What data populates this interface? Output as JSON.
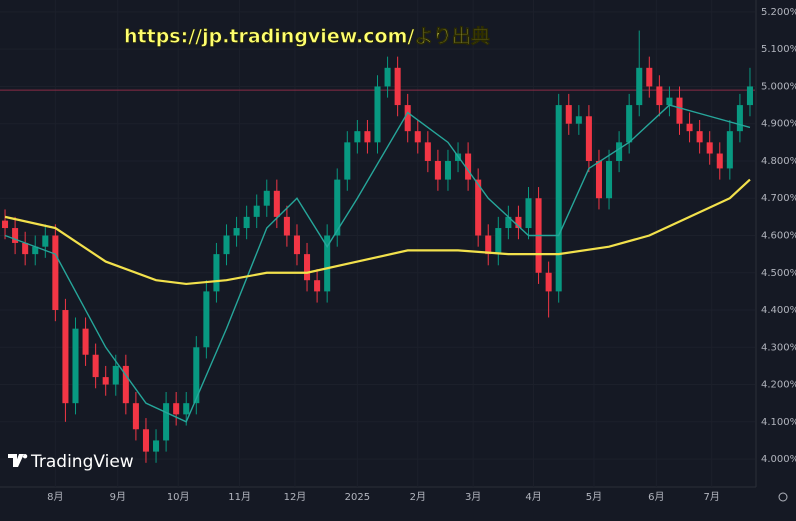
{
  "chart_data": {
    "type": "candlestick",
    "source_note": "https://jp.tradingview.com/より出典",
    "brand": "TradingView",
    "up_color": "#089981",
    "down_color": "#f23645",
    "open": [
      4.64,
      4.62,
      4.58,
      4.55,
      4.57,
      4.6,
      4.4,
      4.15,
      4.35,
      4.28,
      4.22,
      4.2,
      4.25,
      4.15,
      4.08,
      4.02,
      4.05,
      4.15,
      4.12,
      4.15,
      4.3,
      4.45,
      4.55,
      4.6,
      4.62,
      4.65,
      4.68,
      4.72,
      4.65,
      4.6,
      4.55,
      4.48,
      4.45,
      4.6,
      4.75,
      4.85,
      4.88,
      4.85,
      5.0,
      5.05,
      4.95,
      4.88,
      4.85,
      4.8,
      4.75,
      4.8,
      4.82,
      4.75,
      4.6,
      4.55,
      4.62,
      4.65,
      4.62,
      4.7,
      4.5,
      4.45,
      4.95,
      4.9,
      4.92,
      4.8,
      4.7,
      4.8,
      4.85,
      4.95,
      5.05,
      5.0,
      4.95,
      4.97,
      4.9,
      4.88,
      4.85,
      4.82,
      4.78,
      4.88,
      4.95
    ],
    "high": [
      4.67,
      4.65,
      4.61,
      4.6,
      4.63,
      4.63,
      4.43,
      4.38,
      4.38,
      4.31,
      4.25,
      4.28,
      4.28,
      4.18,
      4.11,
      4.08,
      4.18,
      4.18,
      4.18,
      4.33,
      4.48,
      4.58,
      4.63,
      4.65,
      4.68,
      4.71,
      4.75,
      4.75,
      4.68,
      4.63,
      4.58,
      4.51,
      4.63,
      4.78,
      4.88,
      4.91,
      4.91,
      5.03,
      5.08,
      5.08,
      4.98,
      4.91,
      4.88,
      4.83,
      4.83,
      4.85,
      4.85,
      4.78,
      4.63,
      4.65,
      4.68,
      4.68,
      4.73,
      4.73,
      4.53,
      4.98,
      4.98,
      4.95,
      4.95,
      4.83,
      4.83,
      4.88,
      4.98,
      5.15,
      5.08,
      5.03,
      5.0,
      5.0,
      4.93,
      4.91,
      4.88,
      4.85,
      4.91,
      4.98,
      5.05
    ],
    "low": [
      4.59,
      4.55,
      4.52,
      4.52,
      4.54,
      4.37,
      4.1,
      4.12,
      4.25,
      4.19,
      4.17,
      4.17,
      4.12,
      4.05,
      3.99,
      3.99,
      4.02,
      4.09,
      4.09,
      4.12,
      4.27,
      4.42,
      4.52,
      4.57,
      4.59,
      4.62,
      4.65,
      4.62,
      4.57,
      4.52,
      4.45,
      4.42,
      4.42,
      4.57,
      4.72,
      4.82,
      4.82,
      4.82,
      4.97,
      4.92,
      4.85,
      4.82,
      4.77,
      4.72,
      4.72,
      4.77,
      4.72,
      4.57,
      4.52,
      4.52,
      4.59,
      4.59,
      4.59,
      4.47,
      4.38,
      4.42,
      4.87,
      4.87,
      4.77,
      4.67,
      4.67,
      4.77,
      4.82,
      4.92,
      4.97,
      4.92,
      4.92,
      4.87,
      4.85,
      4.82,
      4.79,
      4.75,
      4.75,
      4.85,
      4.92
    ],
    "close": [
      4.62,
      4.58,
      4.55,
      4.57,
      4.6,
      4.4,
      4.15,
      4.35,
      4.28,
      4.22,
      4.2,
      4.25,
      4.15,
      4.08,
      4.02,
      4.05,
      4.15,
      4.12,
      4.15,
      4.3,
      4.45,
      4.55,
      4.6,
      4.62,
      4.65,
      4.68,
      4.72,
      4.65,
      4.6,
      4.55,
      4.48,
      4.45,
      4.6,
      4.75,
      4.85,
      4.88,
      4.85,
      5.0,
      5.05,
      4.95,
      4.88,
      4.85,
      4.8,
      4.75,
      4.8,
      4.82,
      4.75,
      4.6,
      4.55,
      4.62,
      4.65,
      4.62,
      4.7,
      4.5,
      4.45,
      4.95,
      4.9,
      4.92,
      4.8,
      4.7,
      4.8,
      4.85,
      4.95,
      5.05,
      5.0,
      4.95,
      4.97,
      4.9,
      4.88,
      4.85,
      4.82,
      4.78,
      4.88,
      4.95,
      5.0
    ],
    "series": [
      {
        "color": "#26a69a",
        "x": [
          0,
          5,
          10,
          14,
          18,
          22,
          26,
          29,
          32,
          35,
          40,
          44,
          48,
          52,
          55,
          58,
          62,
          66,
          70,
          74
        ],
        "values": [
          4.6,
          4.55,
          4.3,
          4.15,
          4.1,
          4.35,
          4.62,
          4.7,
          4.57,
          4.7,
          4.93,
          4.85,
          4.7,
          4.6,
          4.6,
          4.78,
          4.85,
          4.95,
          4.92,
          4.89
        ]
      },
      {
        "color": "#f2e14c",
        "x": [
          0,
          5,
          10,
          15,
          18,
          22,
          26,
          30,
          35,
          40,
          45,
          50,
          55,
          60,
          64,
          68,
          72,
          74
        ],
        "values": [
          4.65,
          4.62,
          4.53,
          4.48,
          4.47,
          4.48,
          4.5,
          4.5,
          4.53,
          4.56,
          4.56,
          4.55,
          4.55,
          4.57,
          4.6,
          4.65,
          4.7,
          4.75
        ]
      }
    ],
    "reference_line": 4.99,
    "xlim": [
      0,
      75
    ],
    "xticks": [
      {
        "value": 5.5,
        "label": "8月"
      },
      {
        "value": 11.7,
        "label": "9月"
      },
      {
        "value": 17.7,
        "label": "10月"
      },
      {
        "value": 23.8,
        "label": "11月"
      },
      {
        "value": 29.3,
        "label": "12月"
      },
      {
        "value": 35.5,
        "label": "2025"
      },
      {
        "value": 41.5,
        "label": "2月"
      },
      {
        "value": 47,
        "label": "3月"
      },
      {
        "value": 53,
        "label": "4月"
      },
      {
        "value": 59,
        "label": "5月"
      },
      {
        "value": 65.2,
        "label": "6月"
      },
      {
        "value": 70.7,
        "label": "7月"
      }
    ],
    "ylim": [
      3.917,
      5.232
    ],
    "yticks": [
      {
        "value": 5.2,
        "label": "5.200%"
      },
      {
        "value": 5.1,
        "label": "5.100%"
      },
      {
        "value": 5.0,
        "label": "5.000%"
      },
      {
        "value": 4.9,
        "label": "4.900%"
      },
      {
        "value": 4.8,
        "label": "4.800%"
      },
      {
        "value": 4.7,
        "label": "4.700%"
      },
      {
        "value": 4.6,
        "label": "4.600%"
      },
      {
        "value": 4.5,
        "label": "4.500%"
      },
      {
        "value": 4.4,
        "label": "4.400%"
      },
      {
        "value": 4.3,
        "label": "4.300%"
      },
      {
        "value": 4.2,
        "label": "4.200%"
      },
      {
        "value": 4.1,
        "label": "4.100%"
      },
      {
        "value": 4.0,
        "label": "4.000%"
      }
    ]
  }
}
